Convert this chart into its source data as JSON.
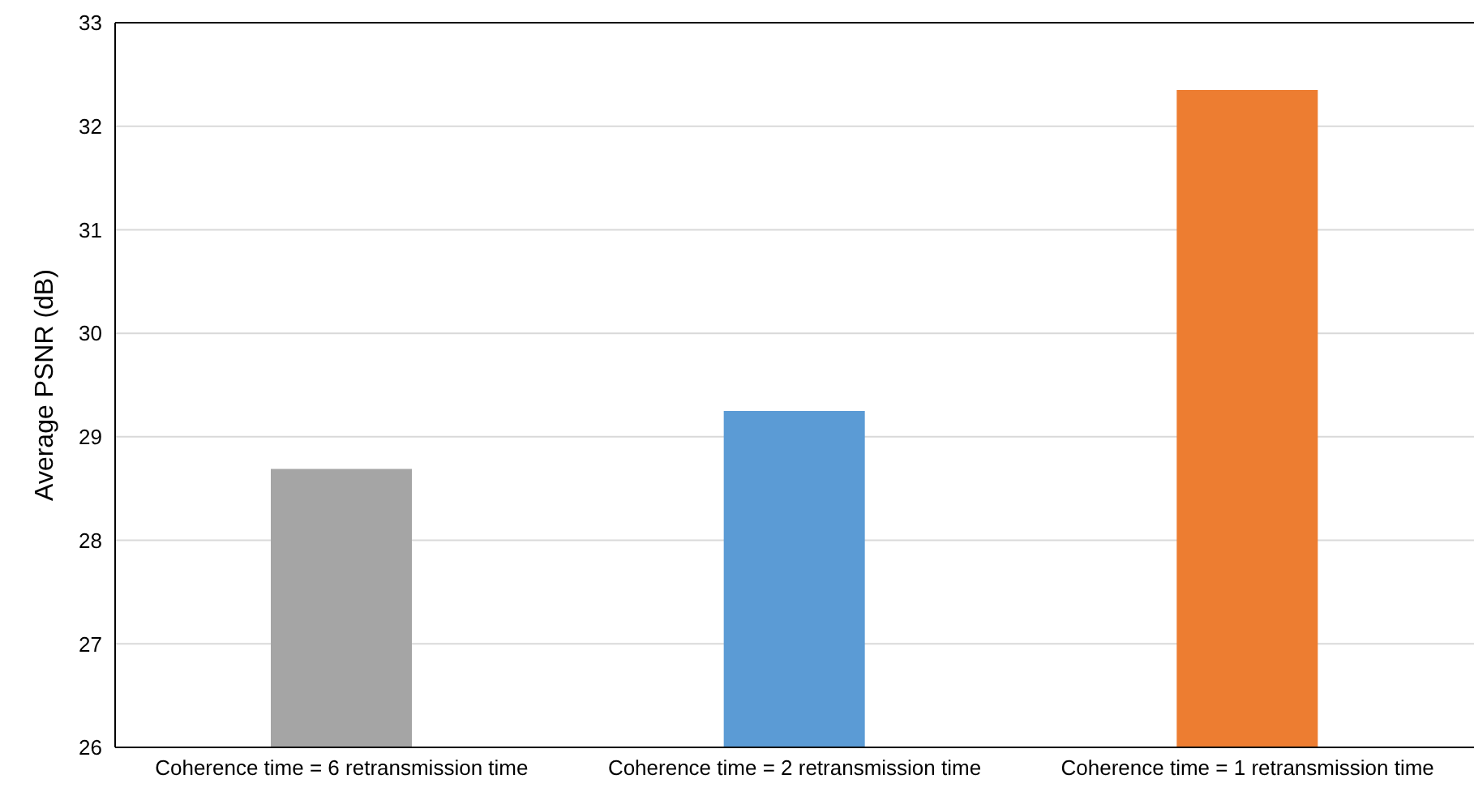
{
  "chart_data": {
    "type": "bar",
    "ylabel": "Average PSNR (dB)",
    "categories": [
      "Coherence time = 6 retransmission time",
      "Coherence time = 2 retransmission time",
      "Coherence time = 1 retransmission time"
    ],
    "values": [
      28.69,
      29.25,
      32.35
    ],
    "colors": [
      "#a5a5a5",
      "#5b9bd5",
      "#ed7d31"
    ],
    "ylim": [
      26,
      33
    ],
    "yticks": [
      26,
      27,
      28,
      29,
      30,
      31,
      32,
      33
    ],
    "grid": "y",
    "legend": false
  }
}
